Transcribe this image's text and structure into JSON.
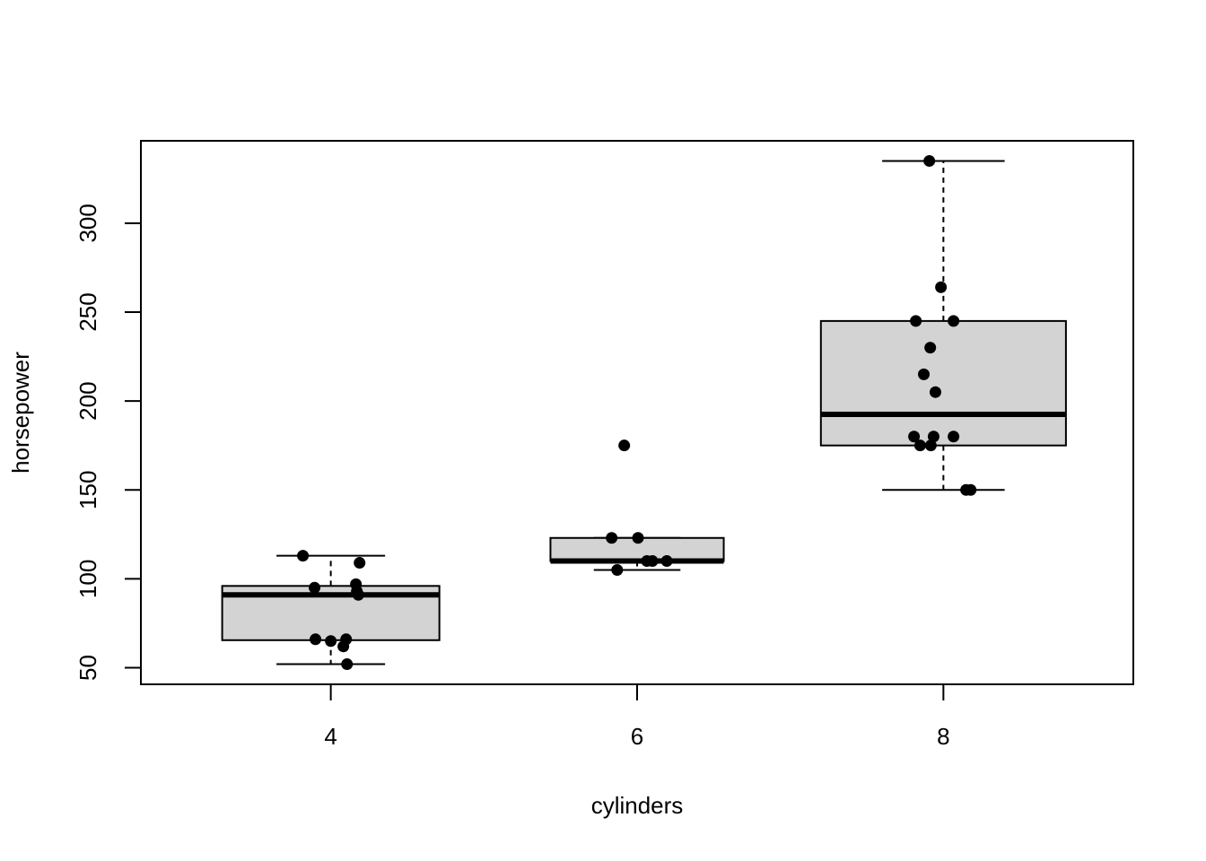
{
  "chart_data": {
    "type": "boxplot",
    "x_label": "cylinders",
    "y_label": "horsepower",
    "xlim": [
      0.38,
      3.62
    ],
    "xticks": [
      {
        "value": 1,
        "label": "4"
      },
      {
        "value": 2,
        "label": "6"
      },
      {
        "value": 3,
        "label": "8"
      }
    ],
    "ylim": [
      40.68,
      346.32
    ],
    "yticks": [
      50,
      100,
      150,
      200,
      250,
      300
    ],
    "box_color": "#d3d3d3",
    "point_color": "#000000",
    "boxes": [
      {
        "position": 1,
        "min": 52,
        "q1": 65.5,
        "median": 91,
        "q3": 96,
        "max": 113,
        "points": {
          "x": [
            0.909,
            0.947,
            0.95,
            1.0,
            1.041,
            1.05,
            1.053,
            1.082,
            1.085,
            1.09,
            1.094
          ],
          "y": [
            113,
            95,
            66,
            65,
            62,
            66,
            52,
            97,
            93,
            91,
            109
          ]
        }
      },
      {
        "position": 2,
        "min": 105,
        "q1": 110,
        "median": 110,
        "q3": 123,
        "max": 123,
        "points": {
          "x": [
            1.958,
            1.917,
            2.003,
            1.935,
            2.032,
            2.05,
            2.097
          ],
          "y": [
            175,
            123,
            123,
            105,
            110,
            110,
            110
          ]
        }
      },
      {
        "position": 3,
        "min": 150,
        "q1": 175,
        "median": 192.5,
        "q3": 245,
        "max": 335,
        "points": {
          "x": [
            2.954,
            2.992,
            2.91,
            3.033,
            2.957,
            2.936,
            2.974,
            2.904,
            2.968,
            3.033,
            2.924,
            2.959,
            3.074,
            3.089
          ],
          "y": [
            335,
            264,
            245,
            245,
            230,
            215,
            205,
            180,
            180,
            180,
            175,
            175,
            150,
            150
          ]
        }
      }
    ]
  }
}
